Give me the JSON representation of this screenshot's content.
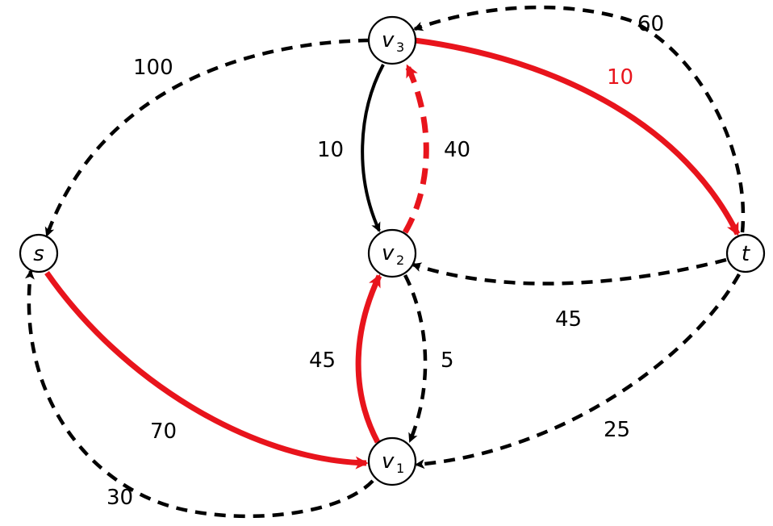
{
  "colors": {
    "highlight": "#e8141c",
    "default": "#000000"
  },
  "nodes": [
    {
      "id": "s",
      "label": "s",
      "sub": ""
    },
    {
      "id": "v1",
      "label": "v",
      "sub": "1"
    },
    {
      "id": "v2",
      "label": "v",
      "sub": "2"
    },
    {
      "id": "v3",
      "label": "v",
      "sub": "3"
    },
    {
      "id": "t",
      "label": "t",
      "sub": ""
    }
  ],
  "edges": [
    {
      "id": "v3-s",
      "from": "v3",
      "to": "s",
      "weight": "100",
      "style": "dashed",
      "color": "black"
    },
    {
      "id": "s-v1",
      "from": "s",
      "to": "v1",
      "weight": "70",
      "style": "solid",
      "color": "red"
    },
    {
      "id": "v1-s",
      "from": "v1",
      "to": "s",
      "weight": "30",
      "style": "dashed",
      "color": "black"
    },
    {
      "id": "v1-v2",
      "from": "v1",
      "to": "v2",
      "weight": "45",
      "style": "solid",
      "color": "red"
    },
    {
      "id": "v2-v1",
      "from": "v2",
      "to": "v1",
      "weight": "5",
      "style": "dashed",
      "color": "black"
    },
    {
      "id": "v3-v2",
      "from": "v3",
      "to": "v2",
      "weight": "10",
      "style": "solid",
      "color": "black"
    },
    {
      "id": "v2-v3",
      "from": "v2",
      "to": "v3",
      "weight": "40",
      "style": "dashed",
      "color": "red"
    },
    {
      "id": "v3-t",
      "from": "v3",
      "to": "t",
      "weight": "10",
      "style": "solid",
      "color": "red"
    },
    {
      "id": "t-v3",
      "from": "t",
      "to": "v3",
      "weight": "60",
      "style": "dashed",
      "color": "black"
    },
    {
      "id": "t-v2",
      "from": "t",
      "to": "v2",
      "weight": "45",
      "style": "dashed",
      "color": "black"
    },
    {
      "id": "t-v1",
      "from": "t",
      "to": "v1",
      "weight": "25",
      "style": "dashed",
      "color": "black"
    }
  ]
}
